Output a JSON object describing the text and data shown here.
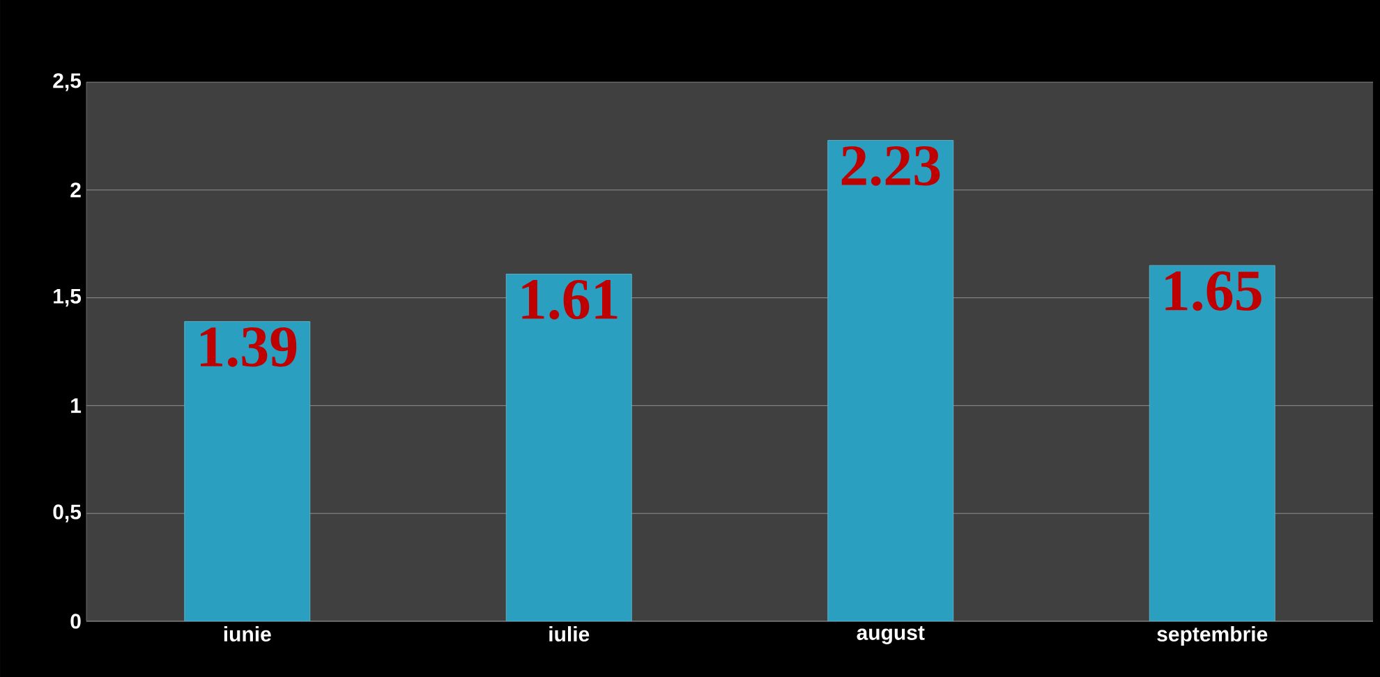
{
  "chart_data": {
    "type": "bar",
    "categories": [
      "iunie",
      "iulie",
      "august",
      "septembrie"
    ],
    "values": [
      1.39,
      1.61,
      2.23,
      1.65
    ],
    "color": "#2a9fbf",
    "data_labels": true,
    "ylim": [
      0,
      2.5
    ],
    "yticks": [
      0,
      {
        "value": 0.5,
        "label": "0,5"
      },
      1,
      {
        "value": 1.5,
        "label": "1,5"
      },
      2,
      {
        "value": 2.5,
        "label": "2,5"
      }
    ],
    "grid": "y"
  }
}
